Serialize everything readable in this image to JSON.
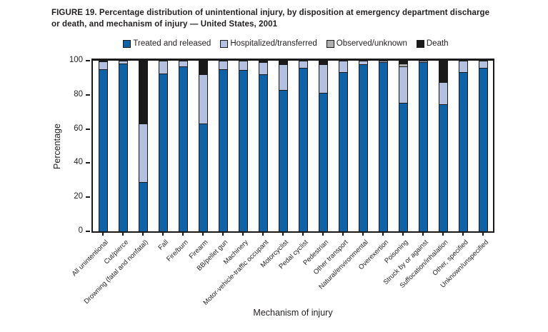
{
  "figure_title": "FIGURE 19. Percentage distribution of unintentional injury, by disposition at emergency department discharge or death, and mechanism of injury — United States, 2001",
  "colors": {
    "treated": "#0f62a5",
    "hospitalized": "#b3c0e0",
    "observed": "#aeaeae",
    "death": "#1a1a1a",
    "frame": "#1a1a1a",
    "text": "#231f20"
  },
  "chart_data": {
    "type": "bar",
    "stacked": true,
    "title": "FIGURE 19. Percentage distribution of unintentional injury, by disposition at emergency department discharge or death, and mechanism of injury — United States, 2001",
    "xlabel": "Mechanism of injury",
    "ylabel": "Percentage",
    "ylim": [
      0,
      100
    ],
    "yticks": [
      0,
      20,
      40,
      60,
      80,
      100
    ],
    "grid": false,
    "legend_position": "top",
    "categories": [
      "All unintentional",
      "Cut/pierce",
      "Drowning (fatal and nonfatal)",
      "Fall",
      "Fire/burn",
      "Firearm",
      "BB/pellet gun",
      "Machinery",
      "Motor-vehicle-traffic occupant",
      "Motorcyclist",
      "Pedal cyclist",
      "Pedestrian",
      "Other transport",
      "Natural/environmental",
      "Overexertion",
      "Poisoning",
      "Struck by or against",
      "Suffocation/inhalation",
      "Other, specified",
      "Unknown/unspecified"
    ],
    "series": [
      {
        "name": "Treated and released",
        "color_key": "treated",
        "values": [
          95,
          98.5,
          29,
          92.5,
          96.5,
          63,
          95,
          94.5,
          92,
          83,
          96,
          81,
          93.5,
          98,
          99,
          75.5,
          99,
          74.5,
          93.5,
          96
        ]
      },
      {
        "name": "Hospitalized/transferred",
        "color_key": "hospitalized",
        "values": [
          4.5,
          1.5,
          34,
          7.5,
          3.5,
          29,
          5,
          5.5,
          7,
          15,
          4,
          17,
          6.5,
          2,
          1,
          21,
          1,
          13,
          6.5,
          4
        ]
      },
      {
        "name": "Observed/unknown",
        "color_key": "observed",
        "values": [
          0,
          0,
          0,
          0,
          0,
          0,
          0,
          0,
          0,
          0,
          0,
          0,
          0,
          0,
          0,
          2,
          0,
          0,
          0,
          0
        ]
      },
      {
        "name": "Death",
        "color_key": "death",
        "values": [
          0.5,
          0,
          37,
          0,
          0,
          8,
          0,
          0,
          1,
          2,
          0,
          2,
          0,
          0,
          0,
          1.5,
          0,
          12.5,
          0,
          0
        ]
      }
    ]
  }
}
